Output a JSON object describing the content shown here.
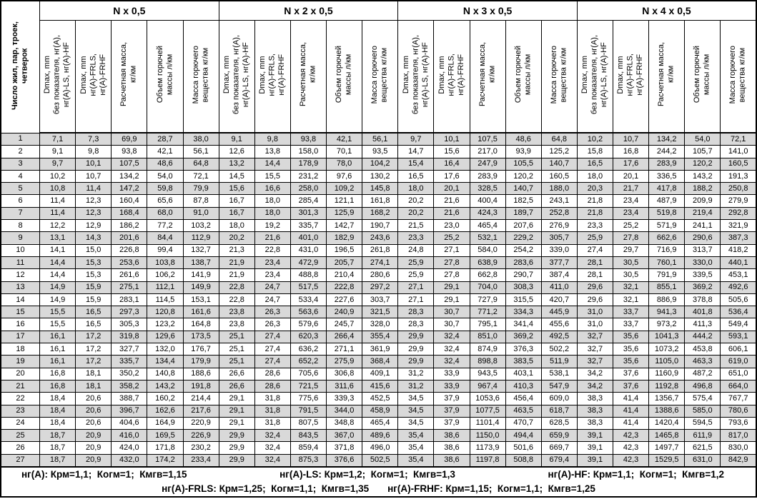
{
  "table": {
    "corner_header": "Число жил, пар, троек,\nчетверок",
    "groups": [
      "N x 0,5",
      "N x 2 x 0,5",
      "N x 3 x 0,5",
      "N x 4 x 0,5"
    ],
    "sub_headers": [
      "Dmax, mm\nбез показателя, нг(А),\nнг(А)-LS, нг(А)-HF",
      "Dmax, mm\nнг(А)-FRLS,\nнг(А)-FRHF",
      "Расчетная масса,\nкг/км",
      "Объем горючей\nмассы л/км",
      "Масса горючего\nвещества кг/км"
    ],
    "rows": [
      {
        "n": "1",
        "cells": [
          "7,1",
          "7,3",
          "69,9",
          "28,7",
          "38,0",
          "9,1",
          "9,8",
          "93,8",
          "42,1",
          "56,1",
          "9,7",
          "10,1",
          "107,5",
          "48,6",
          "64,8",
          "10,2",
          "10,7",
          "134,2",
          "54,0",
          "72,1"
        ]
      },
      {
        "n": "2",
        "cells": [
          "9,1",
          "9,8",
          "93,8",
          "42,1",
          "56,1",
          "12,6",
          "13,8",
          "158,0",
          "70,1",
          "93,5",
          "14,7",
          "15,6",
          "217,0",
          "93,9",
          "125,2",
          "15,8",
          "16,8",
          "244,2",
          "105,7",
          "141,0"
        ]
      },
      {
        "n": "3",
        "cells": [
          "9,7",
          "10,1",
          "107,5",
          "48,6",
          "64,8",
          "13,2",
          "14,4",
          "178,9",
          "78,0",
          "104,2",
          "15,4",
          "16,4",
          "247,9",
          "105,5",
          "140,7",
          "16,5",
          "17,6",
          "283,9",
          "120,2",
          "160,5"
        ]
      },
      {
        "n": "4",
        "cells": [
          "10,2",
          "10,7",
          "134,2",
          "54,0",
          "72,1",
          "14,5",
          "15,5",
          "231,2",
          "97,6",
          "130,2",
          "16,5",
          "17,6",
          "283,9",
          "120,2",
          "160,5",
          "18,0",
          "20,1",
          "336,5",
          "143,2",
          "191,3"
        ]
      },
      {
        "n": "5",
        "cells": [
          "10,8",
          "11,4",
          "147,2",
          "59,8",
          "79,9",
          "15,6",
          "16,6",
          "258,0",
          "109,2",
          "145,8",
          "18,0",
          "20,1",
          "328,5",
          "140,7",
          "188,0",
          "20,3",
          "21,7",
          "417,8",
          "188,2",
          "250,8"
        ]
      },
      {
        "n": "6",
        "cells": [
          "11,4",
          "12,3",
          "160,4",
          "65,6",
          "87,8",
          "16,7",
          "18,0",
          "285,4",
          "121,1",
          "161,8",
          "20,2",
          "21,6",
          "400,4",
          "182,5",
          "243,1",
          "21,8",
          "23,4",
          "487,9",
          "209,9",
          "279,9"
        ]
      },
      {
        "n": "7",
        "cells": [
          "11,4",
          "12,3",
          "168,4",
          "68,0",
          "91,0",
          "16,7",
          "18,0",
          "301,3",
          "125,9",
          "168,2",
          "20,2",
          "21,6",
          "424,3",
          "189,7",
          "252,8",
          "21,8",
          "23,4",
          "519,8",
          "219,4",
          "292,8"
        ]
      },
      {
        "n": "8",
        "cells": [
          "12,2",
          "12,9",
          "186,2",
          "77,2",
          "103,2",
          "18,0",
          "19,2",
          "335,7",
          "142,7",
          "190,7",
          "21,5",
          "23,0",
          "465,4",
          "207,6",
          "276,9",
          "23,3",
          "25,2",
          "571,9",
          "241,1",
          "321,9"
        ]
      },
      {
        "n": "9",
        "cells": [
          "13,1",
          "14,3",
          "201,6",
          "84,4",
          "112,9",
          "20,2",
          "21,6",
          "401,0",
          "182,9",
          "243,6",
          "23,3",
          "25,2",
          "532,1",
          "229,2",
          "305,7",
          "25,9",
          "27,8",
          "662,6",
          "290,6",
          "387,3"
        ]
      },
      {
        "n": "10",
        "cells": [
          "14,1",
          "15,0",
          "226,8",
          "99,4",
          "132,7",
          "21,3",
          "22,8",
          "431,0",
          "196,5",
          "261,8",
          "24,8",
          "27,1",
          "584,0",
          "254,2",
          "339,0",
          "27,4",
          "29,7",
          "716,9",
          "313,7",
          "418,2"
        ]
      },
      {
        "n": "11",
        "cells": [
          "14,4",
          "15,3",
          "253,6",
          "103,8",
          "138,7",
          "21,9",
          "23,4",
          "472,9",
          "205,7",
          "274,1",
          "25,9",
          "27,8",
          "638,9",
          "283,6",
          "377,7",
          "28,1",
          "30,5",
          "760,1",
          "330,0",
          "440,1"
        ]
      },
      {
        "n": "12",
        "cells": [
          "14,4",
          "15,3",
          "261,6",
          "106,2",
          "141,9",
          "21,9",
          "23,4",
          "488,8",
          "210,4",
          "280,6",
          "25,9",
          "27,8",
          "662,8",
          "290,7",
          "387,4",
          "28,1",
          "30,5",
          "791,9",
          "339,5",
          "453,1"
        ]
      },
      {
        "n": "13",
        "cells": [
          "14,9",
          "15,9",
          "275,1",
          "112,1",
          "149,9",
          "22,8",
          "24,7",
          "517,5",
          "222,8",
          "297,2",
          "27,1",
          "29,1",
          "704,0",
          "308,3",
          "411,0",
          "29,6",
          "32,1",
          "855,1",
          "369,2",
          "492,6"
        ]
      },
      {
        "n": "14",
        "cells": [
          "14,9",
          "15,9",
          "283,1",
          "114,5",
          "153,1",
          "22,8",
          "24,7",
          "533,4",
          "227,6",
          "303,7",
          "27,1",
          "29,1",
          "727,9",
          "315,5",
          "420,7",
          "29,6",
          "32,1",
          "886,9",
          "378,8",
          "505,6"
        ]
      },
      {
        "n": "15",
        "cells": [
          "15,5",
          "16,5",
          "297,3",
          "120,8",
          "161,6",
          "23,8",
          "26,3",
          "563,6",
          "240,9",
          "321,5",
          "28,3",
          "30,7",
          "771,2",
          "334,3",
          "445,9",
          "31,0",
          "33,7",
          "941,3",
          "401,8",
          "536,4"
        ]
      },
      {
        "n": "16",
        "cells": [
          "15,5",
          "16,5",
          "305,3",
          "123,2",
          "164,8",
          "23,8",
          "26,3",
          "579,6",
          "245,7",
          "328,0",
          "28,3",
          "30,7",
          "795,1",
          "341,4",
          "455,6",
          "31,0",
          "33,7",
          "973,2",
          "411,3",
          "549,4"
        ]
      },
      {
        "n": "17",
        "cells": [
          "16,1",
          "17,2",
          "319,8",
          "129,6",
          "173,5",
          "25,1",
          "27,4",
          "620,3",
          "266,4",
          "355,4",
          "29,9",
          "32,4",
          "851,0",
          "369,2",
          "492,5",
          "32,7",
          "35,6",
          "1041,3",
          "444,2",
          "593,1"
        ]
      },
      {
        "n": "18",
        "cells": [
          "16,1",
          "17,2",
          "327,7",
          "132,0",
          "176,7",
          "25,1",
          "27,4",
          "636,2",
          "271,1",
          "361,9",
          "29,9",
          "32,4",
          "874,9",
          "376,3",
          "502,2",
          "32,7",
          "35,6",
          "1073,2",
          "453,8",
          "606,1"
        ]
      },
      {
        "n": "19",
        "cells": [
          "16,1",
          "17,2",
          "335,7",
          "134,4",
          "179,9",
          "25,1",
          "27,4",
          "652,2",
          "275,9",
          "368,4",
          "29,9",
          "32,4",
          "898,8",
          "383,5",
          "511,9",
          "32,7",
          "35,6",
          "1105,0",
          "463,3",
          "619,0"
        ]
      },
      {
        "n": "20",
        "cells": [
          "16,8",
          "18,1",
          "350,2",
          "140,8",
          "188,6",
          "26,6",
          "28,6",
          "705,6",
          "306,8",
          "409,1",
          "31,2",
          "33,9",
          "943,5",
          "403,1",
          "538,1",
          "34,2",
          "37,6",
          "1160,9",
          "487,2",
          "651,0"
        ]
      },
      {
        "n": "21",
        "cells": [
          "16,8",
          "18,1",
          "358,2",
          "143,2",
          "191,8",
          "26,6",
          "28,6",
          "721,5",
          "311,6",
          "415,6",
          "31,2",
          "33,9",
          "967,4",
          "410,3",
          "547,9",
          "34,2",
          "37,6",
          "1192,8",
          "496,8",
          "664,0"
        ]
      },
      {
        "n": "22",
        "cells": [
          "18,4",
          "20,6",
          "388,7",
          "160,2",
          "214,4",
          "29,1",
          "31,8",
          "775,6",
          "339,3",
          "452,5",
          "34,5",
          "37,9",
          "1053,6",
          "456,4",
          "609,0",
          "38,3",
          "41,4",
          "1356,7",
          "575,4",
          "767,7"
        ]
      },
      {
        "n": "23",
        "cells": [
          "18,4",
          "20,6",
          "396,7",
          "162,6",
          "217,6",
          "29,1",
          "31,8",
          "791,5",
          "344,0",
          "458,9",
          "34,5",
          "37,9",
          "1077,5",
          "463,5",
          "618,7",
          "38,3",
          "41,4",
          "1388,6",
          "585,0",
          "780,6"
        ]
      },
      {
        "n": "24",
        "cells": [
          "18,4",
          "20,6",
          "404,6",
          "164,9",
          "220,9",
          "29,1",
          "31,8",
          "807,5",
          "348,8",
          "465,4",
          "34,5",
          "37,9",
          "1101,4",
          "470,7",
          "628,5",
          "38,3",
          "41,4",
          "1420,4",
          "594,5",
          "793,6"
        ]
      },
      {
        "n": "25",
        "cells": [
          "18,7",
          "20,9",
          "416,0",
          "169,5",
          "226,9",
          "29,9",
          "32,4",
          "843,5",
          "367,0",
          "489,6",
          "35,4",
          "38,6",
          "1150,0",
          "494,4",
          "659,9",
          "39,1",
          "42,3",
          "1465,8",
          "611,9",
          "817,0"
        ]
      },
      {
        "n": "26",
        "cells": [
          "18,7",
          "20,9",
          "424,0",
          "171,8",
          "230,2",
          "29,9",
          "32,4",
          "859,4",
          "371,8",
          "496,0",
          "35,4",
          "38,6",
          "1173,9",
          "501,6",
          "669,7",
          "39,1",
          "42,3",
          "1497,7",
          "621,5",
          "830,0"
        ]
      },
      {
        "n": "27",
        "cells": [
          "18,7",
          "20,9",
          "432,0",
          "174,2",
          "233,4",
          "29,9",
          "32,4",
          "875,3",
          "376,6",
          "502,5",
          "35,4",
          "38,6",
          "1197,8",
          "508,8",
          "679,4",
          "39,1",
          "42,3",
          "1529,5",
          "631,0",
          "842,9"
        ]
      }
    ],
    "footer_line1": [
      "нг(А): Крм=1,1;  Когм=1;  Кмгв=1,15",
      "нг(А)-LS: Крм=1,2;  Когм=1;  Кмгв=1,3",
      "нг(А)-HF: Крм=1,1;  Когм=1;  Кмгв=1,2"
    ],
    "footer_line2": [
      "нг(А)-FRLS: Крм=1,25;  Когм=1,1;  Кмгв=1,35",
      "нг(А)-FRHF: Крм=1,15;  Когм=1,1;  Кмгв=1,25"
    ],
    "colors": {
      "stripe": "#d9d9d9",
      "border": "#000000",
      "text": "#000000",
      "background": "#ffffff"
    }
  }
}
